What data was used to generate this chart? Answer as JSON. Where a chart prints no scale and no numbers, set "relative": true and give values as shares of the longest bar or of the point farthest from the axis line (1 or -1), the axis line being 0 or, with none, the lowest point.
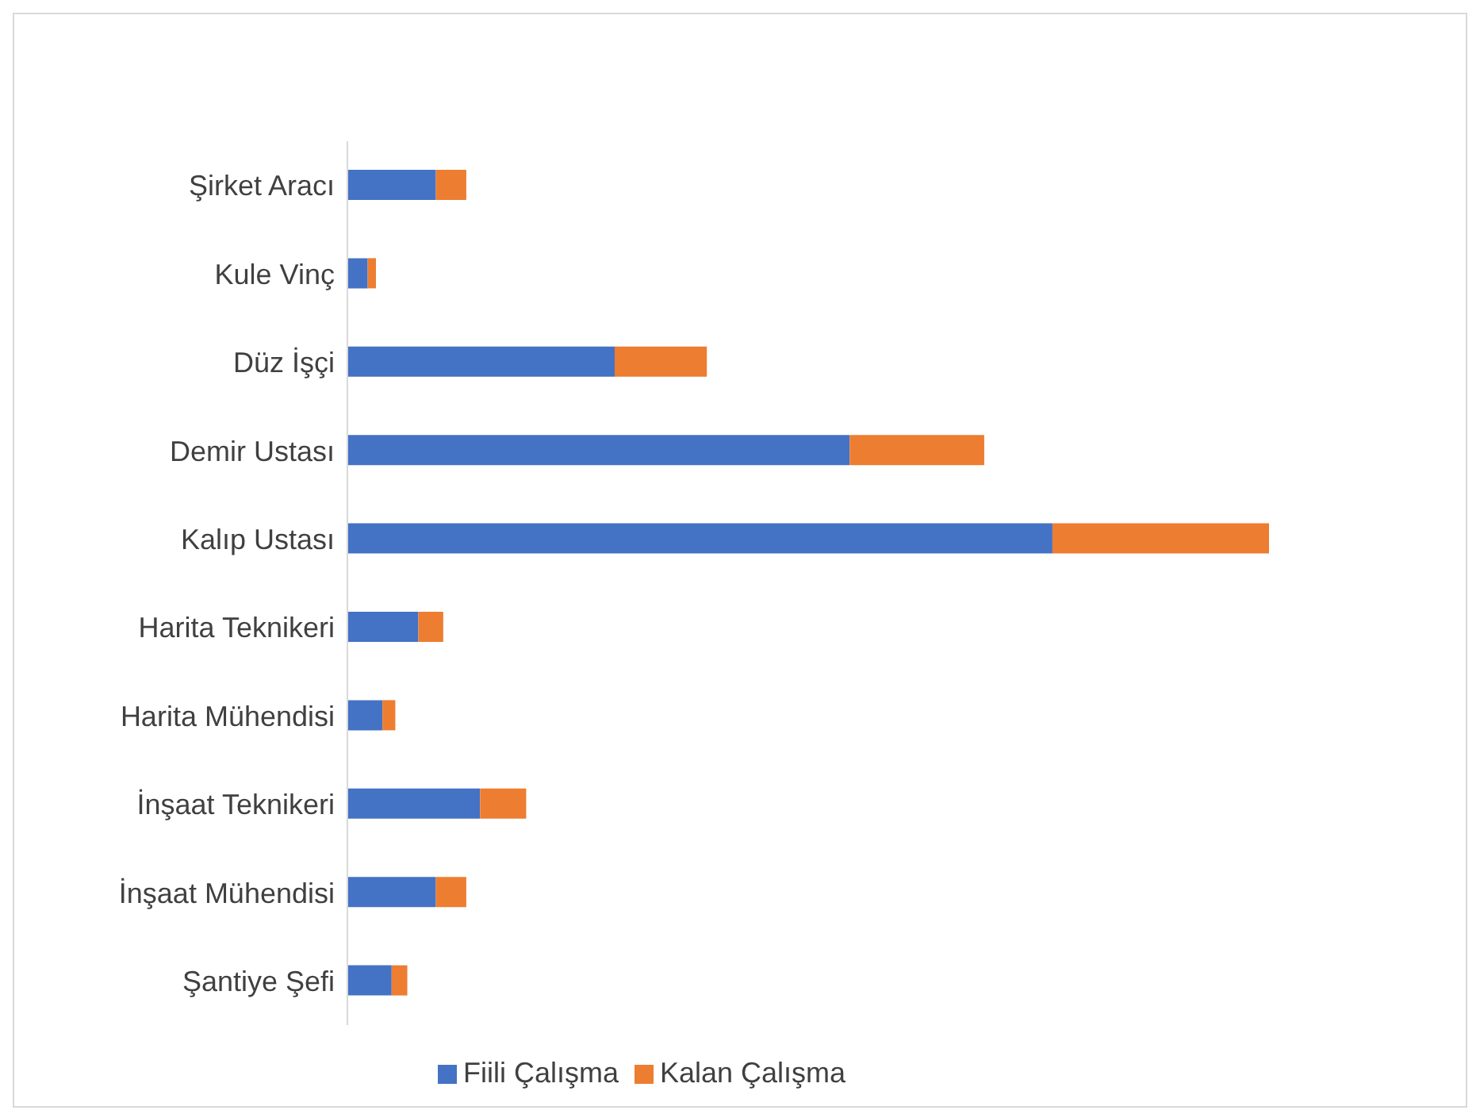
{
  "chart_data": {
    "type": "bar",
    "orientation": "horizontal",
    "stacked": true,
    "relative": true,
    "legend": "bottom",
    "categories": [
      "Şirket Aracı",
      "Kule Vinç",
      "Düz İşçi",
      "Demir Ustası",
      "Kalıp Ustası",
      "Harita Teknikeri",
      "Harita Mühendisi",
      "İnşaat Teknikeri",
      "İnşaat Mühendisi",
      "Şantiye Şefi"
    ],
    "series": [
      {
        "name": "Fiili Çalışma",
        "color": "#4472c4",
        "values": [
          0.096,
          0.022,
          0.29,
          0.545,
          0.765,
          0.077,
          0.038,
          0.144,
          0.096,
          0.048
        ]
      },
      {
        "name": "Kalan Çalışma",
        "color": "#ed7d31",
        "values": [
          0.033,
          0.009,
          0.1,
          0.146,
          0.235,
          0.027,
          0.014,
          0.05,
          0.033,
          0.017
        ]
      }
    ]
  }
}
